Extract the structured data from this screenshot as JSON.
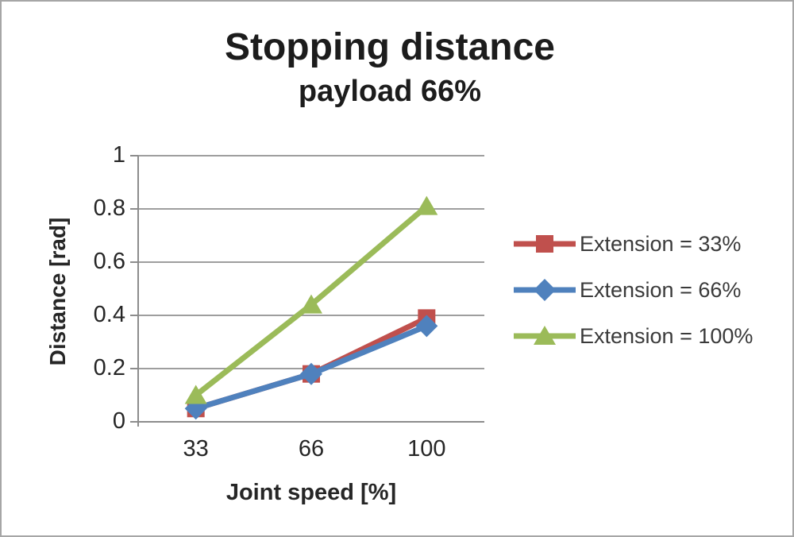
{
  "frame": {
    "background": "#ffffff",
    "border_color": "#a6a6a6"
  },
  "title": "Stopping distance",
  "subtitle": "payload 66%",
  "axes": {
    "y": {
      "title": "Distance [rad]",
      "ticks": [
        "1",
        "0.8",
        "0.6",
        "0.4",
        "0.2",
        "0"
      ]
    },
    "x": {
      "title": "Joint speed [%]",
      "ticks": [
        "33",
        "66",
        "100"
      ]
    }
  },
  "legend": {
    "items": [
      {
        "label": "Extension = 33%",
        "color": "#C0504D",
        "marker": "square"
      },
      {
        "label": "Extension = 66%",
        "color": "#4F81BD",
        "marker": "diamond"
      },
      {
        "label": "Extension = 100%",
        "color": "#9BBB59",
        "marker": "triangle"
      }
    ]
  },
  "colors": {
    "axis_line": "#8c8c8c",
    "gridline": "#9e9e9e",
    "text": "#262626",
    "legend_text": "#3a3a3a"
  },
  "chart_data": {
    "type": "line",
    "title": "Stopping distance",
    "subtitle": "payload 66%",
    "xlabel": "Joint speed [%]",
    "ylabel": "Distance [rad]",
    "categories": [
      33,
      66,
      100
    ],
    "series": [
      {
        "name": "Extension = 33%",
        "color": "#C0504D",
        "marker": "square",
        "values": [
          0.05,
          0.18,
          0.39
        ]
      },
      {
        "name": "Extension = 66%",
        "color": "#4F81BD",
        "marker": "diamond",
        "values": [
          0.05,
          0.18,
          0.36
        ]
      },
      {
        "name": "Extension = 100%",
        "color": "#9BBB59",
        "marker": "triangle",
        "values": [
          0.1,
          0.44,
          0.81
        ]
      }
    ],
    "ylim": [
      0,
      1
    ],
    "ytick_step": 0.2,
    "grid": true,
    "legend_position": "right"
  }
}
